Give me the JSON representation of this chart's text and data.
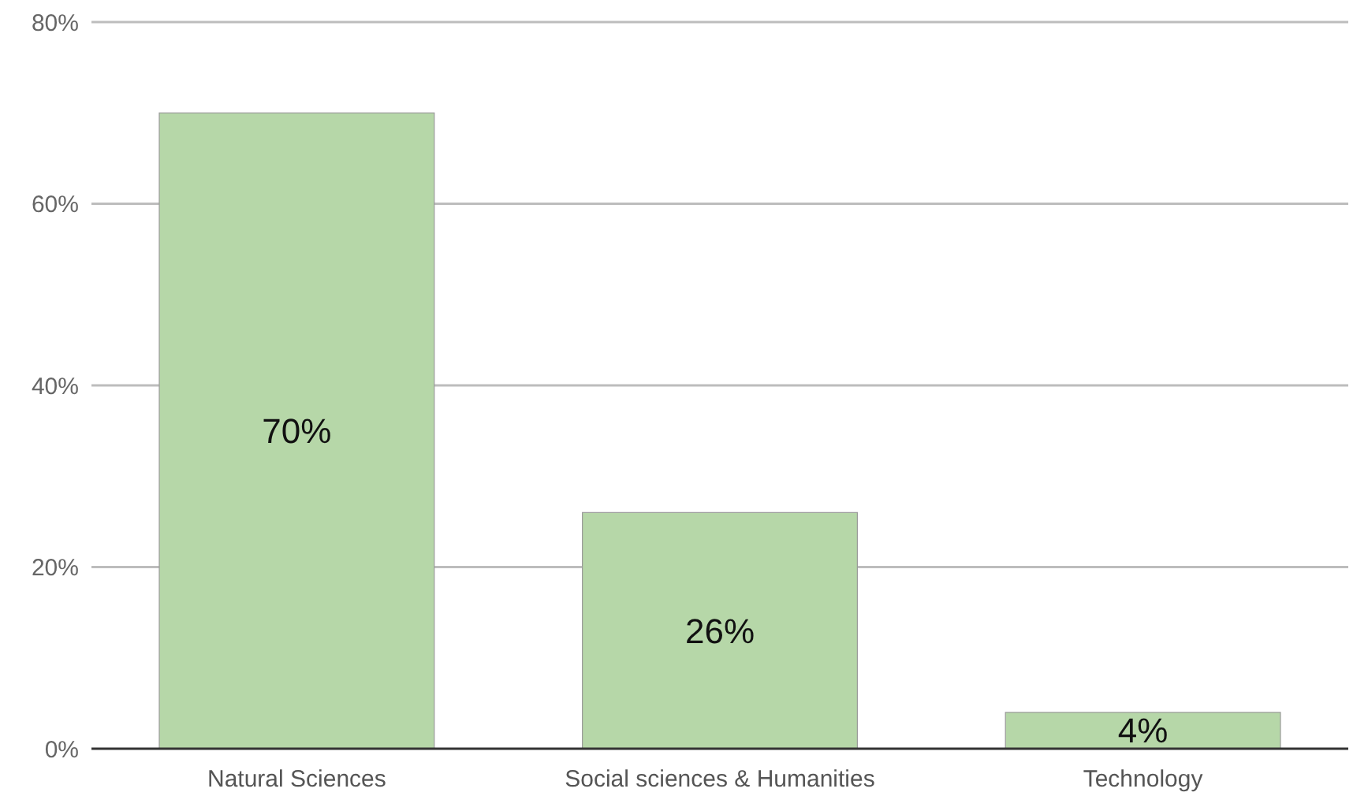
{
  "chart_data": {
    "type": "bar",
    "categories": [
      "Natural Sciences",
      "Social sciences & Humanities",
      "Technology"
    ],
    "values": [
      70,
      26,
      4
    ],
    "color": "#b6d7a8",
    "value_labels": [
      "70%",
      "26%",
      "4%"
    ],
    "ylim": [
      0,
      80
    ],
    "yticks": [
      {
        "value": 0,
        "label": "0%"
      },
      {
        "value": 20,
        "label": "20%"
      },
      {
        "value": 40,
        "label": "40%"
      },
      {
        "value": 60,
        "label": "60%"
      },
      {
        "value": 80,
        "label": "80%"
      }
    ],
    "grid": "y"
  }
}
